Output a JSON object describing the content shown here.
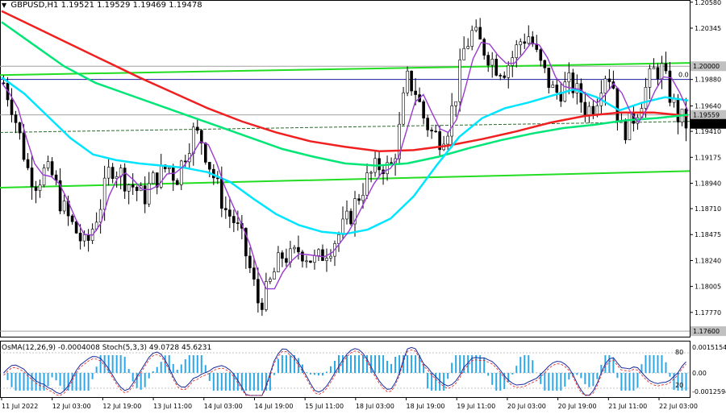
{
  "header": {
    "symbol": "GBPUSD,H1",
    "ohlc": "1.19521 1.19529 1.19469 1.19478"
  },
  "indicators_label": {
    "osma": "OsMA(12,26,9) -0.0004008",
    "stoch": "Stoch(5,3,3) 49.0728 45.6231"
  },
  "chart_data": {
    "type": "candlestick",
    "ylim": [
      1.1755,
      1.206
    ],
    "price_ticks": [
      "1.20580",
      "1.20345",
      "1.20000",
      "1.19880",
      "1.19640",
      "1.19559",
      "1.19410",
      "1.19175",
      "1.18940",
      "1.18710",
      "1.18475",
      "1.18240",
      "1.18005",
      "1.17770",
      "1.17600"
    ],
    "highlight_labels": [
      {
        "text": "1.20000",
        "price": 1.2,
        "bg": "#c0c0c0"
      },
      {
        "text": "1.19559",
        "price": 1.19559,
        "bg": "#c0c0c0"
      },
      {
        "text": "1.19478",
        "price": 1.19478,
        "bg": "#000000"
      },
      {
        "text": "1.17600",
        "price": 1.176,
        "bg": "#c0c0c0"
      }
    ],
    "level_note": "0.0",
    "x_ticks": [
      "11 Jul 2022",
      "12 Jul 03:00",
      "12 Jul 19:00",
      "13 Jul 11:00",
      "14 Jul 03:00",
      "14 Jul 19:00",
      "15 Jul 11:00",
      "18 Jul 03:00",
      "18 Jul 19:00",
      "19 Jul 11:00",
      "20 Jul 03:00",
      "20 Jul 19:00",
      "21 Jul 11:00",
      "22 Jul 03:00"
    ],
    "osma_ticks": [
      "0.0015154",
      "0.00",
      "-0.0012594"
    ],
    "stoch_ticks": [
      "80",
      "20"
    ],
    "close_path": [
      1.1985,
      1.1965,
      1.1935,
      1.1905,
      1.1895,
      1.1905,
      1.19,
      1.1875,
      1.186,
      1.1848,
      1.1835,
      1.1858,
      1.188,
      1.191,
      1.1905,
      1.1895,
      1.189,
      1.188,
      1.1895,
      1.1902,
      1.191,
      1.1898,
      1.192,
      1.194,
      1.1935,
      1.1912,
      1.189,
      1.187,
      1.186,
      1.1842,
      1.1815,
      1.1785,
      1.1795,
      1.1815,
      1.183,
      1.1825,
      1.1835,
      1.1828,
      1.1822,
      1.1832,
      1.184,
      1.185,
      1.1862,
      1.188,
      1.1895,
      1.1905,
      1.1912,
      1.1905,
      1.1935,
      1.1988,
      1.198,
      1.1955,
      1.194,
      1.1935,
      1.1945,
      1.1975,
      1.2015,
      1.203,
      1.202,
      1.201,
      1.2,
      1.1998,
      1.201,
      1.2025,
      1.2028,
      1.2005,
      1.199,
      1.1975,
      1.198,
      1.1985,
      1.1972,
      1.196,
      1.1968,
      1.1995,
      1.199,
      1.1942,
      1.1945,
      1.196,
      1.1978,
      1.1995,
      1.1998,
      1.1975,
      1.1955,
      1.1948
    ],
    "ma_fast": {
      "color": "#00e5ff",
      "points": [
        1.199,
        1.1975,
        1.1955,
        1.1935,
        1.192,
        1.1915,
        1.1912,
        1.191,
        1.1908,
        1.1904,
        1.1895,
        1.188,
        1.1866,
        1.1856,
        1.185,
        1.1848,
        1.1852,
        1.1862,
        1.1882,
        1.191,
        1.1936,
        1.1953,
        1.1962,
        1.1967,
        1.1973,
        1.1979,
        1.1972,
        1.196,
        1.1967,
        1.1972,
        1.1969
      ]
    },
    "ma_mid": {
      "color": "#00e676",
      "points": [
        1.204,
        1.202,
        1.2,
        1.1985,
        1.1975,
        1.1965,
        1.1955,
        1.1945,
        1.1935,
        1.1925,
        1.1918,
        1.1912,
        1.191,
        1.1912,
        1.1918,
        1.1926,
        1.1933,
        1.1939,
        1.1944,
        1.1947,
        1.1951,
        1.1953,
        1.1956
      ]
    },
    "ma_slow": {
      "color": "#f02020",
      "points": [
        1.205,
        1.2035,
        1.202,
        1.2005,
        1.199,
        1.1976,
        1.1962,
        1.195,
        1.194,
        1.1932,
        1.1927,
        1.1923,
        1.1924,
        1.1928,
        1.1934,
        1.1941,
        1.1949,
        1.1955,
        1.1958,
        1.1958,
        1.1955
      ]
    },
    "green_lines": [
      {
        "from": 1.189,
        "to": 1.1905,
        "color": "#22dd22"
      },
      {
        "from": 1.1992,
        "to": 1.2003,
        "color": "#22dd22"
      }
    ],
    "dashed_line": {
      "from": 1.194,
      "to": 1.195
    },
    "blue_line": 1.1988
  }
}
